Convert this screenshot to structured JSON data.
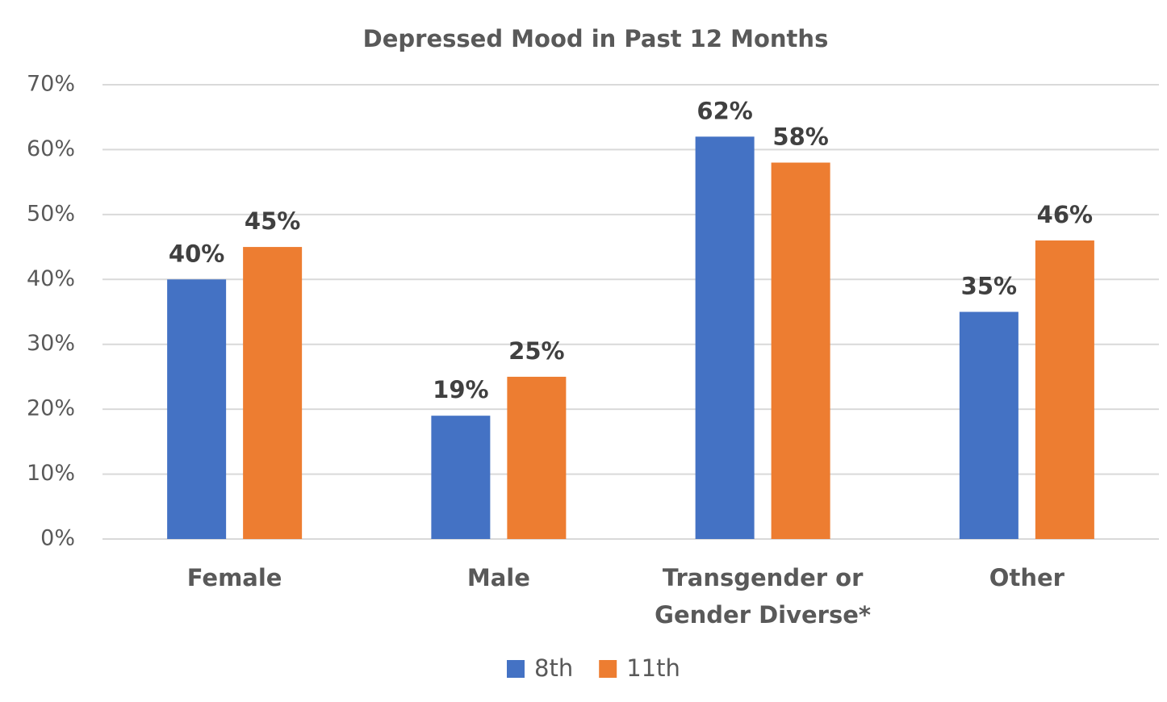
{
  "chart_data": {
    "type": "bar",
    "title": "Depressed Mood in Past 12 Months",
    "categories": [
      "Female",
      "Male",
      "Transgender or Gender Diverse*",
      "Other"
    ],
    "series": [
      {
        "name": "8th",
        "color": "#4472c4",
        "values": [
          40,
          19,
          62,
          35
        ],
        "value_labels": [
          "40%",
          "19%",
          "62%",
          "35%"
        ]
      },
      {
        "name": "11th",
        "color": "#ed7d31",
        "values": [
          45,
          25,
          58,
          46
        ],
        "value_labels": [
          "45%",
          "25%",
          "58%",
          "46%"
        ]
      }
    ],
    "ylim": [
      0,
      70
    ],
    "yticks": [
      {
        "value": 0,
        "label": "0%"
      },
      {
        "value": 10,
        "label": "10%"
      },
      {
        "value": 20,
        "label": "20%"
      },
      {
        "value": 30,
        "label": "30%"
      },
      {
        "value": 40,
        "label": "40%"
      },
      {
        "value": 50,
        "label": "50%"
      },
      {
        "value": 60,
        "label": "60%"
      },
      {
        "value": 70,
        "label": "70%"
      }
    ],
    "grid": true,
    "legend": "bottom"
  }
}
